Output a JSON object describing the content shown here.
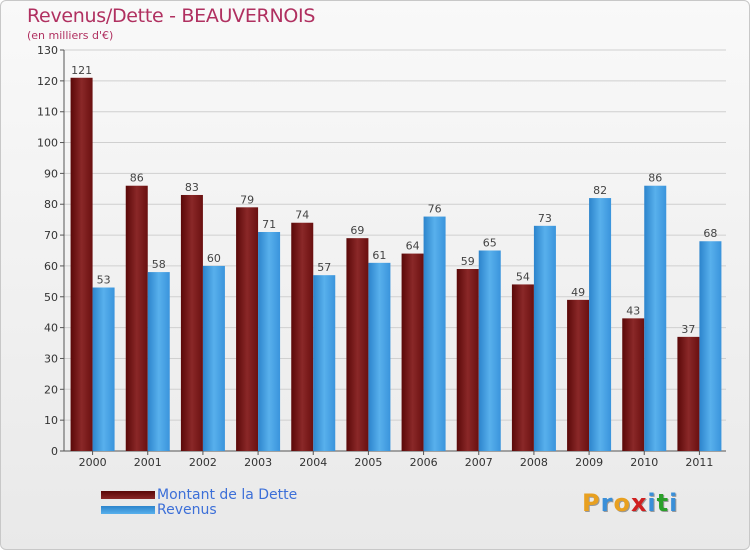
{
  "header": {
    "title": "Revenus/Dette - BEAUVERNOIS",
    "subtitle": "(en milliers d'€)"
  },
  "colors": {
    "dette": "#7a1a1a",
    "revenus": "#3d9be0",
    "title": "#b03060",
    "legend_text": "#3c6fd8"
  },
  "chart_data": {
    "type": "bar",
    "title": "Revenus/Dette - BEAUVERNOIS",
    "subtitle": "(en milliers d'€)",
    "categories": [
      "2000",
      "2001",
      "2002",
      "2003",
      "2004",
      "2005",
      "2006",
      "2007",
      "2008",
      "2009",
      "2010",
      "2011"
    ],
    "series": [
      {
        "name": "Montant de la Dette",
        "values": [
          121,
          86,
          83,
          79,
          74,
          69,
          64,
          59,
          54,
          49,
          43,
          37
        ]
      },
      {
        "name": "Revenus",
        "values": [
          53,
          58,
          60,
          71,
          57,
          61,
          76,
          65,
          73,
          82,
          86,
          68
        ]
      }
    ],
    "ylim": [
      0,
      130
    ],
    "yticks": [
      0,
      10,
      20,
      30,
      40,
      50,
      60,
      70,
      80,
      90,
      100,
      110,
      120,
      130
    ],
    "grid": true,
    "legend": "bottom-left"
  },
  "legend": {
    "items": [
      {
        "label": "Montant de la Dette"
      },
      {
        "label": "Revenus"
      }
    ]
  },
  "brand": {
    "letters": [
      "P",
      "r",
      "o",
      "x",
      "i",
      "t",
      "i"
    ],
    "colors": [
      "#e8a020",
      "#3a8fd8",
      "#e8a020",
      "#d02020",
      "#3a8fd8",
      "#2aa02a",
      "#3a8fd8"
    ]
  }
}
